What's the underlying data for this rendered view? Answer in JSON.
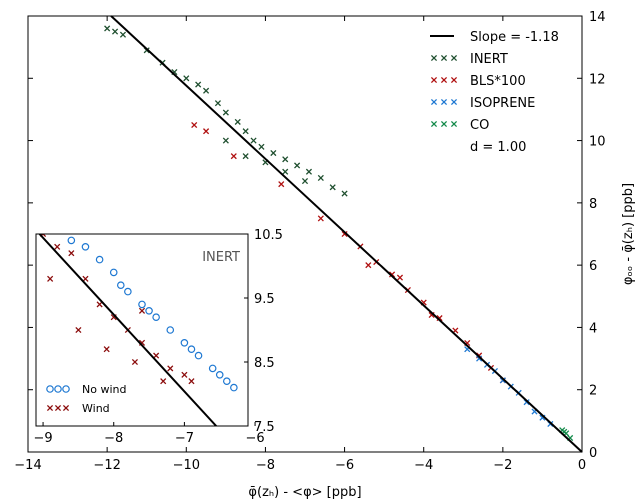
{
  "chart_data": [
    {
      "type": "scatter",
      "xlabel": "φ̄(zₕ) - <φ> [ppb]",
      "ylabel": "φₒₒ - φ̄(zₕ) [ppb]",
      "xlim": [
        -14,
        0
      ],
      "ylim": [
        0,
        14
      ],
      "x_ticks": [
        "−14",
        "−12",
        "−10",
        "−8",
        "−6",
        "−4",
        "−2",
        "0"
      ],
      "y_ticks": [
        "0",
        "2",
        "4",
        "6",
        "8",
        "10",
        "12",
        "14"
      ],
      "legend_placement": "top-right",
      "annotation": "d = 1.00",
      "fit_line": {
        "label": "Slope = -1.18",
        "slope": -1.18,
        "from": [
          -11.9,
          14.0
        ],
        "to": [
          0,
          0
        ],
        "color": "#000000"
      },
      "series": [
        {
          "name": "INERT",
          "marker": "x",
          "color": "#1f4f2f",
          "points": [
            [
              -12.0,
              13.6
            ],
            [
              -11.8,
              13.5
            ],
            [
              -11.6,
              13.4
            ],
            [
              -11.0,
              12.9
            ],
            [
              -10.6,
              12.5
            ],
            [
              -10.3,
              12.2
            ],
            [
              -10.0,
              12.0
            ],
            [
              -9.7,
              11.8
            ],
            [
              -9.5,
              11.6
            ],
            [
              -9.2,
              11.2
            ],
            [
              -9.0,
              10.9
            ],
            [
              -8.7,
              10.6
            ],
            [
              -8.5,
              10.3
            ],
            [
              -8.3,
              10.0
            ],
            [
              -8.1,
              9.8
            ],
            [
              -7.8,
              9.6
            ],
            [
              -7.5,
              9.4
            ],
            [
              -7.2,
              9.2
            ],
            [
              -6.9,
              9.0
            ],
            [
              -6.6,
              8.8
            ],
            [
              -6.3,
              8.5
            ],
            [
              -6.0,
              8.3
            ],
            [
              -9.0,
              10.0
            ],
            [
              -8.5,
              9.5
            ],
            [
              -8.0,
              9.3
            ],
            [
              -7.5,
              9.0
            ],
            [
              -7.0,
              8.7
            ]
          ]
        },
        {
          "name": "BLS*100",
          "marker": "x",
          "color": "#b01010",
          "points": [
            [
              -9.8,
              10.5
            ],
            [
              -9.5,
              10.3
            ],
            [
              -8.8,
              9.5
            ],
            [
              -7.6,
              8.6
            ],
            [
              -6.6,
              7.5
            ],
            [
              -6.0,
              7.0
            ],
            [
              -5.6,
              6.6
            ],
            [
              -5.2,
              6.1
            ],
            [
              -4.8,
              5.7
            ],
            [
              -4.4,
              5.2
            ],
            [
              -4.0,
              4.8
            ],
            [
              -3.6,
              4.3
            ],
            [
              -3.2,
              3.9
            ],
            [
              -2.9,
              3.5
            ],
            [
              -2.6,
              3.1
            ],
            [
              -2.3,
              2.7
            ],
            [
              -2.0,
              2.3
            ],
            [
              -5.4,
              6.0
            ],
            [
              -4.6,
              5.6
            ],
            [
              -3.8,
              4.4
            ]
          ]
        },
        {
          "name": "ISOPRENE",
          "marker": "x",
          "color": "#1e78d2",
          "points": [
            [
              -2.9,
              3.3
            ],
            [
              -2.6,
              3.0
            ],
            [
              -2.4,
              2.8
            ],
            [
              -2.2,
              2.6
            ],
            [
              -2.0,
              2.3
            ],
            [
              -1.8,
              2.1
            ],
            [
              -1.6,
              1.9
            ],
            [
              -1.4,
              1.6
            ],
            [
              -1.2,
              1.3
            ],
            [
              -1.0,
              1.1
            ],
            [
              -0.8,
              0.9
            ]
          ]
        },
        {
          "name": "CO",
          "marker": "x",
          "color": "#138a4a",
          "points": [
            [
              -0.5,
              0.7
            ],
            [
              -0.45,
              0.65
            ],
            [
              -0.4,
              0.6
            ],
            [
              -0.3,
              0.45
            ]
          ]
        }
      ]
    },
    {
      "type": "scatter",
      "title": "INERT",
      "xlim": [
        -9.1,
        -6.1
      ],
      "ylim": [
        7.5,
        10.5
      ],
      "x_ticks": [
        "−9",
        "−8",
        "−7",
        "−6"
      ],
      "y_ticks": [
        "7.5",
        "8.5",
        "9.5",
        "10.5"
      ],
      "legend_placement": "bottom-left",
      "fit_line": {
        "slope": -1.18,
        "from": [
          -9.05,
          10.5
        ],
        "to": [
          -6.55,
          7.5
        ],
        "color": "#000000"
      },
      "series": [
        {
          "name": "No wind",
          "marker": "o",
          "color": "#1e78d2",
          "points": [
            [
              -8.6,
              10.4
            ],
            [
              -8.4,
              10.3
            ],
            [
              -8.2,
              10.1
            ],
            [
              -8.0,
              9.9
            ],
            [
              -7.8,
              9.6
            ],
            [
              -7.6,
              9.4
            ],
            [
              -7.4,
              9.2
            ],
            [
              -7.2,
              9.0
            ],
            [
              -7.0,
              8.8
            ],
            [
              -6.8,
              8.6
            ],
            [
              -6.6,
              8.4
            ],
            [
              -6.4,
              8.2
            ],
            [
              -6.3,
              8.1
            ],
            [
              -7.9,
              9.7
            ],
            [
              -7.5,
              9.3
            ],
            [
              -6.9,
              8.7
            ],
            [
              -6.5,
              8.3
            ]
          ]
        },
        {
          "name": "Wind",
          "marker": "x",
          "color": "#8b0c0c",
          "points": [
            [
              -9.0,
              10.5
            ],
            [
              -8.8,
              10.3
            ],
            [
              -8.6,
              10.2
            ],
            [
              -8.4,
              9.8
            ],
            [
              -8.2,
              9.4
            ],
            [
              -8.0,
              9.2
            ],
            [
              -7.8,
              9.0
            ],
            [
              -7.6,
              8.8
            ],
            [
              -7.4,
              8.6
            ],
            [
              -7.2,
              8.4
            ],
            [
              -7.0,
              8.3
            ],
            [
              -6.9,
              8.2
            ],
            [
              -8.9,
              9.8
            ],
            [
              -8.5,
              9.0
            ],
            [
              -8.1,
              8.7
            ],
            [
              -7.7,
              8.5
            ],
            [
              -7.3,
              8.2
            ],
            [
              -7.6,
              9.3
            ]
          ]
        }
      ]
    }
  ]
}
